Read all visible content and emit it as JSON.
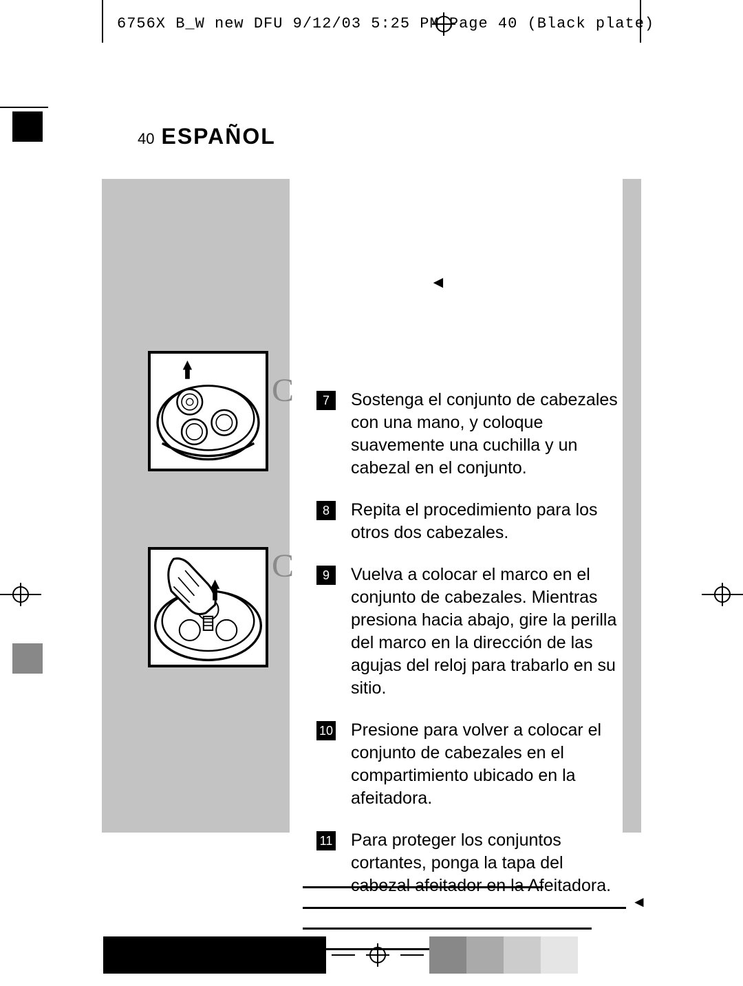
{
  "slug": "6756X B_W new DFU  9/12/03  5:25 PM  Page 40    (Black plate)",
  "header": {
    "page_number": "40",
    "language": "ESPAÑOL"
  },
  "decorations": {
    "top_arrow": "◄",
    "cap_letter_1": "C",
    "cap_letter_2": "C",
    "footer_arrow": "◄"
  },
  "instructions": [
    {
      "num": "7",
      "text": "Sostenga el conjunto de cabezales con una mano, y coloque suavemente una cuchilla y un cabezal en el conjunto."
    },
    {
      "num": "8",
      "text": "Repita el procedimiento para los otros dos cabezales."
    },
    {
      "num": "9",
      "text": "Vuelva a colocar el marco en el conjunto de cabezales. Mientras presiona hacia abajo, gire la perilla del marco en la dirección de las agujas del reloj para trabarlo en su sitio."
    },
    {
      "num": "10",
      "text": "Presione para volver a colocar el conjunto de cabezales en el compartimiento ubicado en la afeitadora."
    },
    {
      "num": "11",
      "text": "Para proteger los conjuntos cortantes, ponga la tapa del cabezal afeitador en la Afeitadora."
    }
  ],
  "redacted_widths": [
    350,
    470,
    420,
    220
  ],
  "colorbar": {
    "black_count": 6,
    "grays": [
      "#888888",
      "#aaaaaa",
      "#cccccc",
      "#e5e5e5"
    ]
  },
  "colors": {
    "band": "#c3c3c3",
    "cap_gray": "#8a8a8a"
  }
}
